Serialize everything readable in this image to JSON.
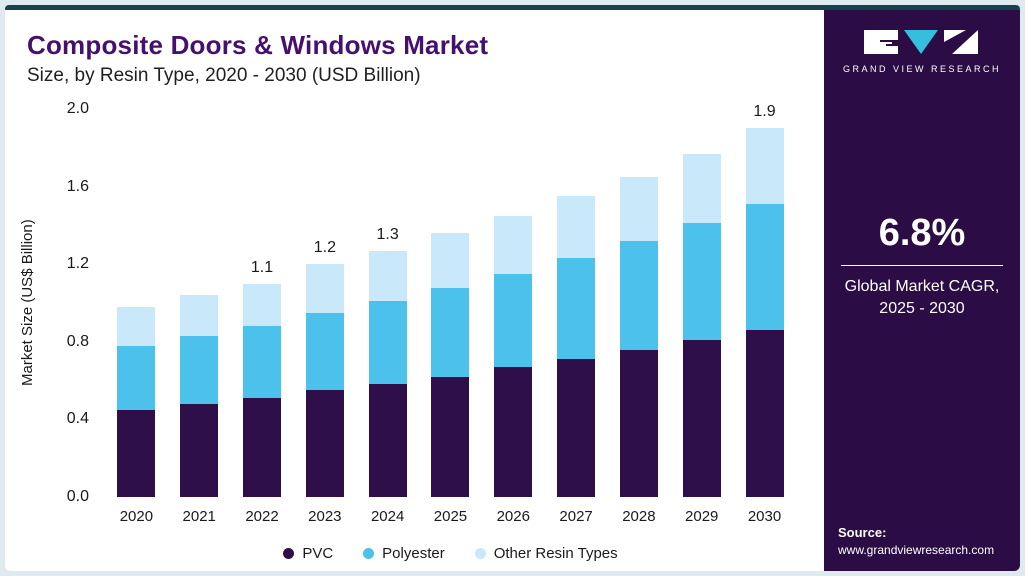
{
  "header": {
    "title": "Composite Doors & Windows Market",
    "subtitle": "Size, by Resin Type, 2020 - 2030 (USD Billion)"
  },
  "sidebar": {
    "logo_text": "GRAND VIEW RESEARCH",
    "cagr_value": "6.8%",
    "cagr_label_line1": "Global Market CAGR,",
    "cagr_label_line2": "2025 - 2030",
    "source_label": "Source:",
    "source_url": "www.grandviewresearch.com"
  },
  "chart_data": {
    "type": "bar",
    "stacked": true,
    "title": "Composite Doors & Windows Market Size, by Resin Type, 2020 - 2030 (USD Billion)",
    "xlabel": "",
    "ylabel": "Market Size (US$ Billion)",
    "ylim": [
      0,
      2.0
    ],
    "yticks": [
      0.0,
      0.4,
      0.8,
      1.2,
      1.6,
      2.0
    ],
    "grid": false,
    "legend_position": "bottom",
    "categories": [
      "2020",
      "2021",
      "2022",
      "2023",
      "2024",
      "2025",
      "2026",
      "2027",
      "2028",
      "2029",
      "2030"
    ],
    "series": [
      {
        "name": "PVC",
        "color": "#2e0f49",
        "values": [
          0.45,
          0.48,
          0.51,
          0.55,
          0.58,
          0.62,
          0.67,
          0.71,
          0.76,
          0.81,
          0.86
        ]
      },
      {
        "name": "Polyester",
        "color": "#4cc1ec",
        "values": [
          0.33,
          0.35,
          0.37,
          0.4,
          0.43,
          0.46,
          0.48,
          0.52,
          0.56,
          0.6,
          0.65
        ]
      },
      {
        "name": "Other Resin Types",
        "color": "#c9e9fa",
        "values": [
          0.2,
          0.21,
          0.22,
          0.25,
          0.26,
          0.28,
          0.3,
          0.32,
          0.33,
          0.36,
          0.39
        ]
      }
    ],
    "totals": [
      0.98,
      1.04,
      1.1,
      1.2,
      1.27,
      1.36,
      1.45,
      1.55,
      1.65,
      1.77,
      1.9
    ],
    "total_labels": {
      "2022": "1.1",
      "2023": "1.2",
      "2024": "1.3",
      "2030": "1.9"
    }
  },
  "colors": {
    "accent_top_bar": "#15424d",
    "sidebar_background": "#2b0c45",
    "title": "#45106e",
    "frame_background": "#dfe9f0",
    "logo_triangle": "#35bfdd"
  }
}
